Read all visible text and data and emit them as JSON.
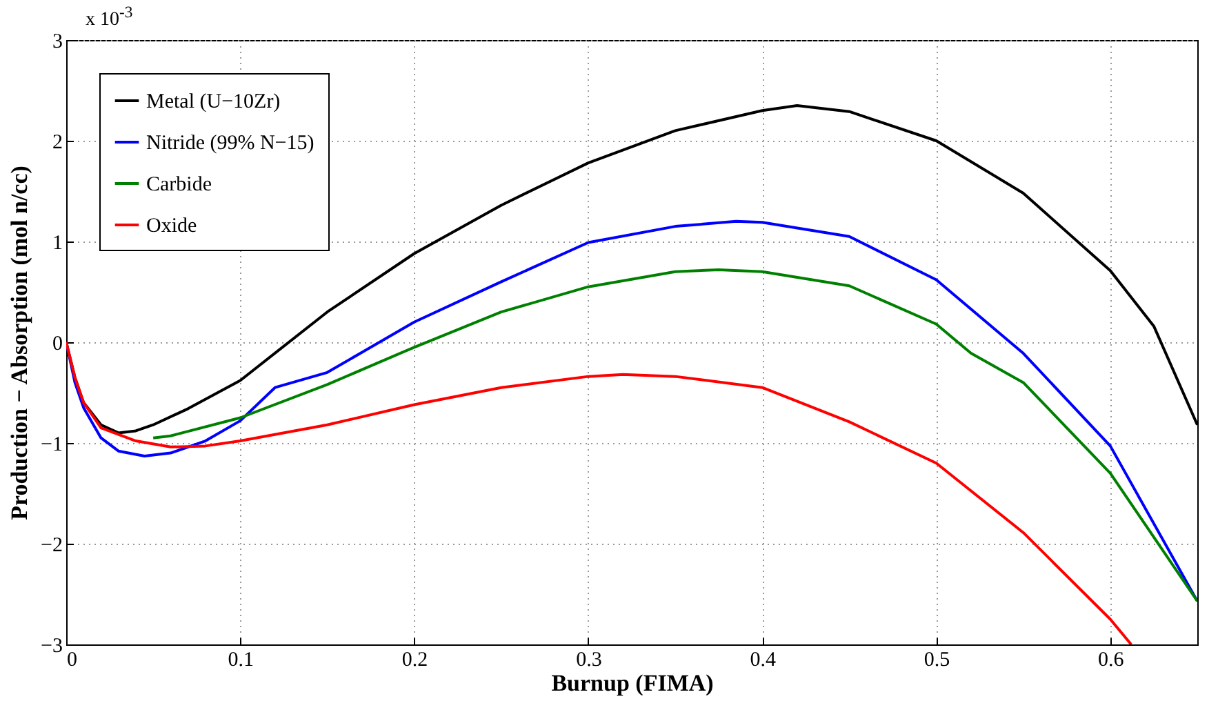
{
  "chart_data": {
    "type": "line",
    "xlabel": "Burnup (FIMA)",
    "ylabel": "Production − Absorption (mol n/cc)",
    "annotations": [
      "x 10$^{-3}$"
    ],
    "xlim": [
      0,
      0.65
    ],
    "ylim": [
      -3,
      3
    ],
    "xticks": [
      0,
      0.1,
      0.2,
      0.3,
      0.4,
      0.5,
      0.6
    ],
    "yticks": [
      -3,
      -2,
      -1,
      0,
      1,
      2,
      3
    ],
    "grid": true,
    "legend": "top left",
    "line_style": "solid",
    "marker": "none",
    "series": [
      {
        "name": "Metal (U−10Zr)",
        "color": "#000000",
        "x": [
          0,
          0.005,
          0.01,
          0.02,
          0.03,
          0.04,
          0.05,
          0.07,
          0.1,
          0.15,
          0.2,
          0.25,
          0.3,
          0.35,
          0.4,
          0.42,
          0.45,
          0.5,
          0.55,
          0.6,
          0.625,
          0.65
        ],
        "values": [
          0,
          -0.35,
          -0.6,
          -0.82,
          -0.9,
          -0.88,
          -0.82,
          -0.66,
          -0.38,
          0.3,
          0.88,
          1.36,
          1.78,
          2.1,
          2.3,
          2.35,
          2.29,
          2.0,
          1.48,
          0.71,
          0.16,
          -0.82
        ]
      },
      {
        "name": "Nitride (99% N−15)",
        "color": "#0000ff",
        "x": [
          0,
          0.005,
          0.01,
          0.02,
          0.03,
          0.045,
          0.06,
          0.08,
          0.1,
          0.12,
          0.15,
          0.2,
          0.25,
          0.3,
          0.35,
          0.385,
          0.4,
          0.45,
          0.5,
          0.55,
          0.6,
          0.65
        ],
        "values": [
          0,
          -0.4,
          -0.65,
          -0.95,
          -1.08,
          -1.13,
          -1.1,
          -0.98,
          -0.78,
          -0.45,
          -0.3,
          0.2,
          0.6,
          0.99,
          1.15,
          1.2,
          1.19,
          1.05,
          0.62,
          -0.11,
          -1.03,
          -2.57
        ]
      },
      {
        "name": "Carbide",
        "color": "#008000",
        "x": [
          0.05,
          0.06,
          0.1,
          0.15,
          0.2,
          0.25,
          0.3,
          0.35,
          0.375,
          0.4,
          0.45,
          0.5,
          0.52,
          0.55,
          0.6,
          0.65
        ],
        "values": [
          -0.95,
          -0.93,
          -0.75,
          -0.42,
          -0.05,
          0.3,
          0.55,
          0.7,
          0.72,
          0.7,
          0.56,
          0.18,
          -0.11,
          -0.4,
          -1.3,
          -2.57
        ]
      },
      {
        "name": "Oxide",
        "color": "#ff0000",
        "x": [
          0,
          0.005,
          0.01,
          0.02,
          0.04,
          0.06,
          0.08,
          0.1,
          0.15,
          0.2,
          0.25,
          0.3,
          0.32,
          0.35,
          0.4,
          0.45,
          0.5,
          0.55,
          0.6,
          0.612
        ],
        "values": [
          0,
          -0.35,
          -0.6,
          -0.85,
          -0.98,
          -1.04,
          -1.03,
          -0.98,
          -0.82,
          -0.62,
          -0.45,
          -0.34,
          -0.32,
          -0.34,
          -0.45,
          -0.79,
          -1.2,
          -1.89,
          -2.75,
          -3
        ]
      }
    ]
  }
}
